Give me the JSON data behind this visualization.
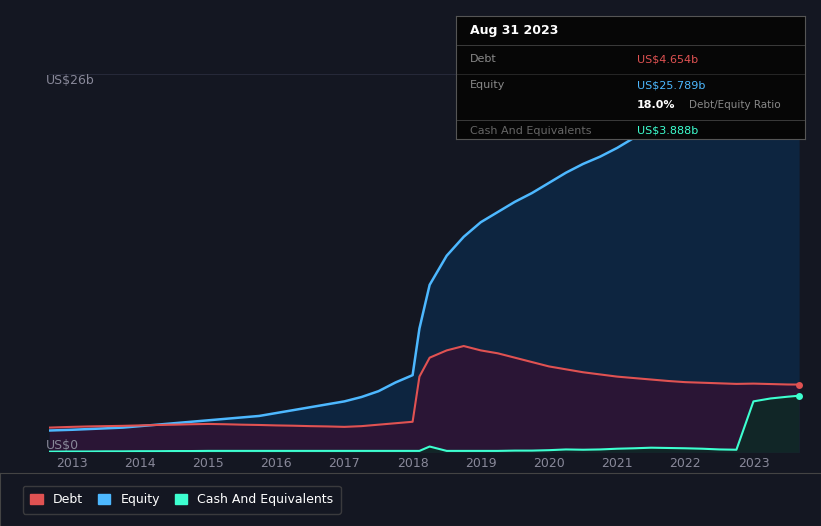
{
  "background_color": "#141722",
  "title_date": "Aug 31 2023",
  "tooltip": {
    "debt_label": "Debt",
    "debt_value": "US$4.654b",
    "equity_label": "Equity",
    "equity_value": "US$25.789b",
    "ratio_value": "18.0%",
    "ratio_label": "Debt/Equity Ratio",
    "cash_label": "Cash And Equivalents",
    "cash_value": "US$3.888b"
  },
  "y_label_top": "US$26b",
  "y_label_bottom": "US$0",
  "x_ticks": [
    "2013",
    "2014",
    "2015",
    "2016",
    "2017",
    "2018",
    "2019",
    "2020",
    "2021",
    "2022",
    "2023"
  ],
  "debt_color": "#e05252",
  "equity_color": "#4db8ff",
  "cash_color": "#3dffd0",
  "years": [
    2012.67,
    2013.0,
    2013.25,
    2013.5,
    2013.75,
    2014.0,
    2014.25,
    2014.5,
    2014.75,
    2015.0,
    2015.25,
    2015.5,
    2015.75,
    2016.0,
    2016.25,
    2016.5,
    2016.75,
    2017.0,
    2017.25,
    2017.5,
    2017.75,
    2018.0,
    2018.1,
    2018.25,
    2018.5,
    2018.75,
    2019.0,
    2019.25,
    2019.5,
    2019.75,
    2020.0,
    2020.25,
    2020.5,
    2020.75,
    2021.0,
    2021.25,
    2021.5,
    2021.75,
    2022.0,
    2022.25,
    2022.5,
    2022.75,
    2023.0,
    2023.25,
    2023.5,
    2023.67
  ],
  "equity": [
    1.5,
    1.55,
    1.6,
    1.65,
    1.7,
    1.8,
    1.9,
    2.0,
    2.1,
    2.2,
    2.3,
    2.4,
    2.5,
    2.7,
    2.9,
    3.1,
    3.3,
    3.5,
    3.8,
    4.2,
    4.8,
    5.3,
    8.5,
    11.5,
    13.5,
    14.8,
    15.8,
    16.5,
    17.2,
    17.8,
    18.5,
    19.2,
    19.8,
    20.3,
    20.9,
    21.6,
    22.3,
    22.9,
    23.4,
    23.9,
    24.4,
    24.8,
    25.1,
    25.4,
    25.6,
    25.789
  ],
  "debt": [
    1.7,
    1.75,
    1.78,
    1.8,
    1.82,
    1.85,
    1.88,
    1.9,
    1.93,
    1.95,
    1.93,
    1.9,
    1.88,
    1.85,
    1.83,
    1.8,
    1.78,
    1.75,
    1.8,
    1.9,
    2.0,
    2.1,
    5.2,
    6.5,
    7.0,
    7.3,
    7.0,
    6.8,
    6.5,
    6.2,
    5.9,
    5.7,
    5.5,
    5.35,
    5.2,
    5.1,
    5.0,
    4.9,
    4.82,
    4.78,
    4.74,
    4.7,
    4.72,
    4.69,
    4.66,
    4.654
  ],
  "cash": [
    0.05,
    0.06,
    0.06,
    0.07,
    0.07,
    0.08,
    0.08,
    0.09,
    0.09,
    0.1,
    0.1,
    0.1,
    0.1,
    0.1,
    0.1,
    0.1,
    0.1,
    0.1,
    0.1,
    0.1,
    0.1,
    0.1,
    0.1,
    0.4,
    0.1,
    0.1,
    0.1,
    0.1,
    0.12,
    0.12,
    0.15,
    0.2,
    0.18,
    0.2,
    0.25,
    0.28,
    0.32,
    0.3,
    0.28,
    0.25,
    0.2,
    0.18,
    3.5,
    3.7,
    3.82,
    3.888
  ],
  "ylim": [
    0,
    26
  ],
  "xlim": [
    2012.67,
    2023.75
  ],
  "grid_color": "#2a2d3e",
  "tick_color": "#888899",
  "legend": [
    {
      "label": "Debt",
      "color": "#e05252"
    },
    {
      "label": "Equity",
      "color": "#4db8ff"
    },
    {
      "label": "Cash And Equivalents",
      "color": "#3dffd0"
    }
  ]
}
